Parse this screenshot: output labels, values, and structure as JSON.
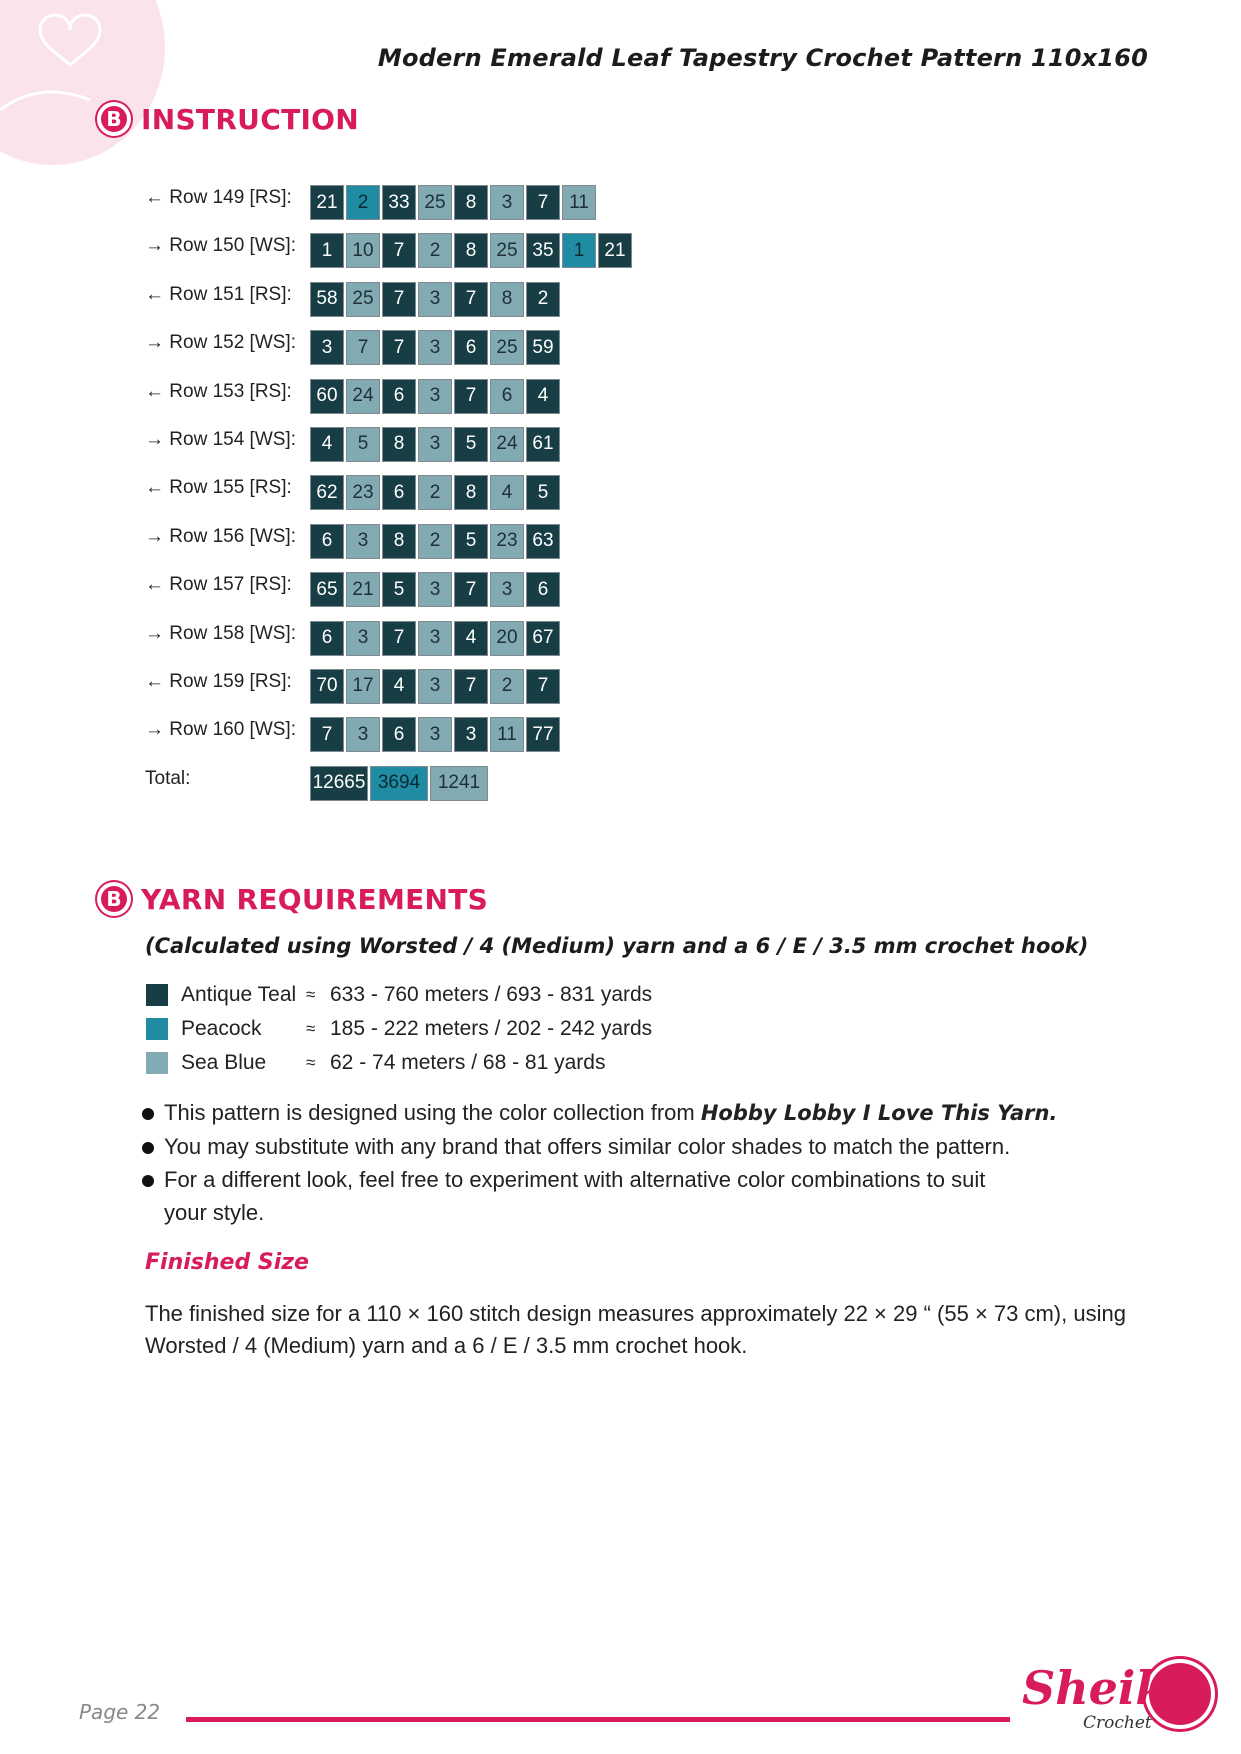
{
  "header": {
    "title": "Modern Emerald Leaf Tapestry Crochet Pattern 110x160"
  },
  "sections": {
    "instruction": {
      "icon": "B",
      "title": "INSTRUCTION"
    },
    "yarn": {
      "icon": "B",
      "title": "YARN REQUIREMENTS"
    }
  },
  "colors": {
    "A": "#173e45",
    "P": "#1f8ca3",
    "S": "#81aab2",
    "accent": "#d81b5a"
  },
  "rows": [
    {
      "label": "← Row 149 [RS]:",
      "cells": [
        [
          "21",
          "A"
        ],
        [
          "2",
          "P"
        ],
        [
          "33",
          "A"
        ],
        [
          "25",
          "S"
        ],
        [
          "8",
          "A"
        ],
        [
          "3",
          "S"
        ],
        [
          "7",
          "A"
        ],
        [
          "11",
          "S"
        ]
      ]
    },
    {
      "label": "→ Row 150 [WS]:",
      "cells": [
        [
          "1",
          "A"
        ],
        [
          "10",
          "S"
        ],
        [
          "7",
          "A"
        ],
        [
          "2",
          "S"
        ],
        [
          "8",
          "A"
        ],
        [
          "25",
          "S"
        ],
        [
          "35",
          "A"
        ],
        [
          "1",
          "P"
        ],
        [
          "21",
          "A"
        ]
      ]
    },
    {
      "label": "← Row 151 [RS]:",
      "cells": [
        [
          "58",
          "A"
        ],
        [
          "25",
          "S"
        ],
        [
          "7",
          "A"
        ],
        [
          "3",
          "S"
        ],
        [
          "7",
          "A"
        ],
        [
          "8",
          "S"
        ],
        [
          "2",
          "A"
        ]
      ]
    },
    {
      "label": "→ Row 152 [WS]:",
      "cells": [
        [
          "3",
          "A"
        ],
        [
          "7",
          "S"
        ],
        [
          "7",
          "A"
        ],
        [
          "3",
          "S"
        ],
        [
          "6",
          "A"
        ],
        [
          "25",
          "S"
        ],
        [
          "59",
          "A"
        ]
      ]
    },
    {
      "label": "← Row 153 [RS]:",
      "cells": [
        [
          "60",
          "A"
        ],
        [
          "24",
          "S"
        ],
        [
          "6",
          "A"
        ],
        [
          "3",
          "S"
        ],
        [
          "7",
          "A"
        ],
        [
          "6",
          "S"
        ],
        [
          "4",
          "A"
        ]
      ]
    },
    {
      "label": "→ Row 154 [WS]:",
      "cells": [
        [
          "4",
          "A"
        ],
        [
          "5",
          "S"
        ],
        [
          "8",
          "A"
        ],
        [
          "3",
          "S"
        ],
        [
          "5",
          "A"
        ],
        [
          "24",
          "S"
        ],
        [
          "61",
          "A"
        ]
      ]
    },
    {
      "label": "← Row 155 [RS]:",
      "cells": [
        [
          "62",
          "A"
        ],
        [
          "23",
          "S"
        ],
        [
          "6",
          "A"
        ],
        [
          "2",
          "S"
        ],
        [
          "8",
          "A"
        ],
        [
          "4",
          "S"
        ],
        [
          "5",
          "A"
        ]
      ]
    },
    {
      "label": "→ Row 156 [WS]:",
      "cells": [
        [
          "6",
          "A"
        ],
        [
          "3",
          "S"
        ],
        [
          "8",
          "A"
        ],
        [
          "2",
          "S"
        ],
        [
          "5",
          "A"
        ],
        [
          "23",
          "S"
        ],
        [
          "63",
          "A"
        ]
      ]
    },
    {
      "label": "← Row 157 [RS]:",
      "cells": [
        [
          "65",
          "A"
        ],
        [
          "21",
          "S"
        ],
        [
          "5",
          "A"
        ],
        [
          "3",
          "S"
        ],
        [
          "7",
          "A"
        ],
        [
          "3",
          "S"
        ],
        [
          "6",
          "A"
        ]
      ]
    },
    {
      "label": "→ Row 158 [WS]:",
      "cells": [
        [
          "6",
          "A"
        ],
        [
          "3",
          "S"
        ],
        [
          "7",
          "A"
        ],
        [
          "3",
          "S"
        ],
        [
          "4",
          "A"
        ],
        [
          "20",
          "S"
        ],
        [
          "67",
          "A"
        ]
      ]
    },
    {
      "label": "← Row 159 [RS]:",
      "cells": [
        [
          "70",
          "A"
        ],
        [
          "17",
          "S"
        ],
        [
          "4",
          "A"
        ],
        [
          "3",
          "S"
        ],
        [
          "7",
          "A"
        ],
        [
          "2",
          "S"
        ],
        [
          "7",
          "A"
        ]
      ]
    },
    {
      "label": "→ Row 160 [WS]:",
      "cells": [
        [
          "7",
          "A"
        ],
        [
          "3",
          "S"
        ],
        [
          "6",
          "A"
        ],
        [
          "3",
          "S"
        ],
        [
          "3",
          "A"
        ],
        [
          "11",
          "S"
        ],
        [
          "77",
          "A"
        ]
      ]
    }
  ],
  "total": {
    "label": "Total:",
    "cells": [
      [
        "12665",
        "A"
      ],
      [
        "3694",
        "P"
      ],
      [
        "1241",
        "S"
      ]
    ]
  },
  "yarn_note": "(Calculated using Worsted / 4 (Medium) yarn and a 6 / E / 3.5 mm crochet hook)",
  "yarns": [
    {
      "name": "Antique Teal",
      "code": "A",
      "approx": "≈",
      "amount": "633 - 760 meters / 693 - 831 yards"
    },
    {
      "name": "Peacock",
      "code": "P",
      "approx": "≈",
      "amount": "185 - 222 meters / 202 - 242 yards"
    },
    {
      "name": "Sea Blue",
      "code": "S",
      "approx": "≈",
      "amount": "62 - 74 meters / 68 - 81 yards"
    }
  ],
  "bullets": {
    "b1_text": "This pattern is designed using the color collection from ",
    "b1_bold": "Hobby Lobby I Love This Yarn.",
    "b2": "You may substitute with any brand that offers similar color shades to match the pattern.",
    "b3": "For a different look, feel free to experiment with alternative color combinations to suit your style."
  },
  "finished": {
    "title": "Finished Size",
    "text": "The finished size for a 110 × 160 stitch design measures approximately 22 × 29 “ (55 × 73 cm), using Worsted / 4 (Medium) yarn and a 6 / E / 3.5 mm crochet hook."
  },
  "footer": {
    "page": "Page 22",
    "logo": "Sheika",
    "logo_sub": "Crochet"
  }
}
